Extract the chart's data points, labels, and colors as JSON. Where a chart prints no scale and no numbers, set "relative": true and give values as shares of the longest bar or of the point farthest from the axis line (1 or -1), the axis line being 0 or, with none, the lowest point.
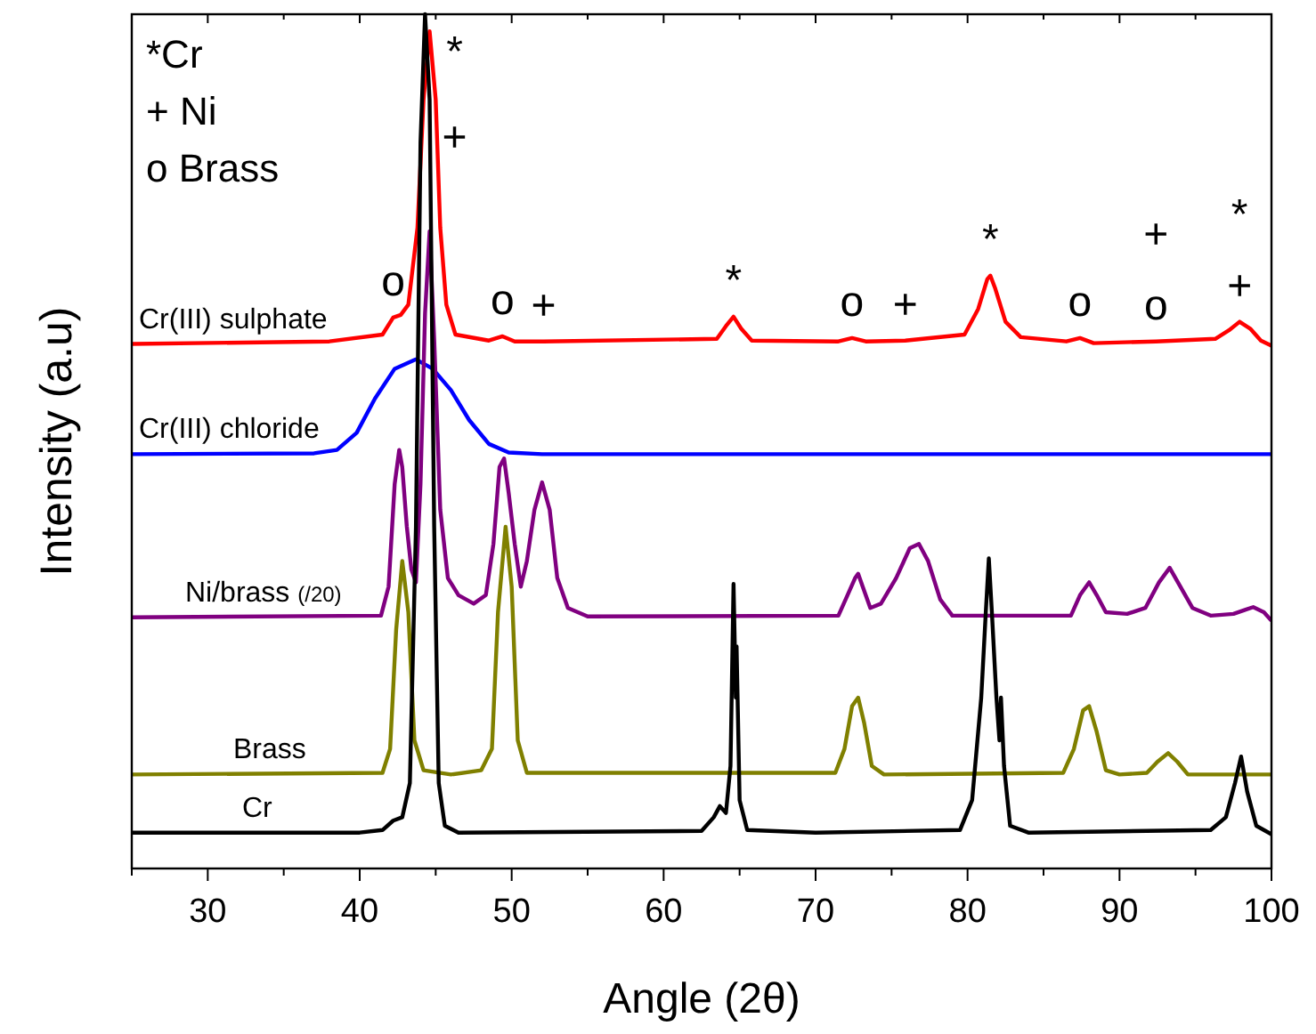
{
  "chart_data": {
    "type": "line",
    "relative": true,
    "xlabel": "Angle (2θ)",
    "ylabel": "Intensity (a.u)",
    "xlim": [
      25,
      100
    ],
    "xticks": [
      {
        "value": 25,
        "label": null
      },
      30,
      {
        "value": 35,
        "label": null
      },
      40,
      {
        "value": 45,
        "label": null
      },
      50,
      {
        "value": 55,
        "label": null
      },
      60,
      {
        "value": 65,
        "label": null
      },
      70,
      {
        "value": 75,
        "label": null
      },
      80,
      {
        "value": 85,
        "label": null
      },
      90,
      {
        "value": 95,
        "label": null
      },
      100
    ],
    "annotations": [
      "*Cr",
      "+ Ni",
      "o Brass",
      {
        "text": "o",
        "x": 42.2,
        "y": 0.645
      },
      {
        "text": "*",
        "x": 44.6,
        "y": 0.98
      },
      {
        "text": "+",
        "x": 44.6,
        "y": 0.98
      },
      {
        "text": "o",
        "x": 49.4,
        "y": 0.623
      },
      {
        "text": "+",
        "x": 52.1,
        "y": 0.617
      },
      {
        "text": "*",
        "x": 64.6,
        "y": 0.646
      },
      {
        "text": "o",
        "x": 72.4,
        "y": 0.621
      },
      {
        "text": "+",
        "x": 75.9,
        "y": 0.618
      },
      {
        "text": "*",
        "x": 81.5,
        "y": 0.694
      },
      {
        "text": "o",
        "x": 87.4,
        "y": 0.621
      },
      {
        "text": "o",
        "x": 92.4,
        "y": 0.617
      },
      {
        "text": "+",
        "x": 92.4,
        "y": 0.617
      },
      {
        "text": "+",
        "x": 97.9,
        "y": 0.64
      },
      {
        "text": "*",
        "x": 97.9,
        "y": 0.64
      }
    ],
    "series": [
      {
        "name": "Cr(III) sulphate",
        "color": "#ff0000",
        "x": [
          25,
          38,
          41.5,
          42.2,
          42.7,
          43.2,
          43.8,
          44.2,
          44.6,
          45.0,
          45.3,
          45.7,
          46.3,
          48.5,
          49.4,
          50.2,
          52.1,
          63.5,
          64.1,
          64.6,
          65.1,
          65.8,
          71.5,
          72.4,
          73.3,
          75.9,
          79.8,
          80.7,
          81.3,
          81.5,
          81.8,
          82.5,
          83.5,
          86.5,
          87.4,
          88.3,
          92.4,
          96.3,
          97.2,
          97.9,
          98.6,
          99.3,
          100
        ],
        "values": [
          0.614,
          0.617,
          0.625,
          0.645,
          0.648,
          0.66,
          0.75,
          0.9,
          0.98,
          0.9,
          0.75,
          0.66,
          0.625,
          0.618,
          0.623,
          0.617,
          0.617,
          0.62,
          0.635,
          0.646,
          0.632,
          0.618,
          0.617,
          0.621,
          0.617,
          0.618,
          0.625,
          0.655,
          0.69,
          0.694,
          0.68,
          0.64,
          0.622,
          0.617,
          0.621,
          0.615,
          0.617,
          0.62,
          0.63,
          0.64,
          0.632,
          0.618,
          0.612
        ]
      },
      {
        "name": "Cr(III) chloride",
        "color": "#0000ff",
        "x": [
          25,
          37,
          38.5,
          39.8,
          41,
          42.3,
          43.7,
          44.8,
          46,
          47.2,
          48.5,
          49.8,
          52,
          100
        ],
        "values": [
          0.485,
          0.486,
          0.49,
          0.51,
          0.55,
          0.585,
          0.596,
          0.585,
          0.56,
          0.525,
          0.497,
          0.487,
          0.485,
          0.485
        ]
      },
      {
        "name": "Ni/brass (/20)",
        "color": "#800080",
        "x": [
          25,
          41.4,
          41.9,
          42.3,
          42.6,
          42.8,
          43.1,
          43.4,
          43.7,
          44.0,
          44.3,
          44.6,
          44.9,
          45.3,
          45.8,
          46.5,
          47.5,
          48.3,
          48.8,
          49.2,
          49.5,
          49.8,
          50.2,
          50.6,
          51.0,
          51.5,
          52.0,
          52.5,
          53.0,
          53.7,
          55,
          71.5,
          72.1,
          72.6,
          72.8,
          73.1,
          73.6,
          74.3,
          75.3,
          76.2,
          76.8,
          77.4,
          78.2,
          79,
          86.8,
          87.4,
          88.0,
          88.5,
          89.1,
          90.5,
          91.7,
          92.6,
          93.3,
          94.0,
          94.8,
          96,
          97.5,
          98.3,
          98.8,
          99.5,
          100
        ],
        "values": [
          0.294,
          0.296,
          0.33,
          0.45,
          0.49,
          0.47,
          0.4,
          0.35,
          0.335,
          0.45,
          0.65,
          0.746,
          0.62,
          0.42,
          0.34,
          0.32,
          0.31,
          0.32,
          0.38,
          0.47,
          0.48,
          0.44,
          0.38,
          0.33,
          0.36,
          0.42,
          0.452,
          0.42,
          0.34,
          0.305,
          0.295,
          0.296,
          0.32,
          0.34,
          0.345,
          0.33,
          0.305,
          0.31,
          0.34,
          0.375,
          0.38,
          0.36,
          0.315,
          0.296,
          0.296,
          0.32,
          0.335,
          0.32,
          0.3,
          0.298,
          0.305,
          0.335,
          0.352,
          0.33,
          0.305,
          0.296,
          0.298,
          0.303,
          0.306,
          0.3,
          0.29
        ]
      },
      {
        "name": "Brass",
        "color": "#808000",
        "x": [
          25,
          41.5,
          42.0,
          42.4,
          42.8,
          43.2,
          43.6,
          44.2,
          46,
          48,
          48.7,
          49.1,
          49.6,
          50.0,
          50.4,
          51,
          71.3,
          71.9,
          72.4,
          72.8,
          73.2,
          73.7,
          74.5,
          86.3,
          87.0,
          87.6,
          88.0,
          88.5,
          89.1,
          90,
          91.8,
          92.5,
          93.2,
          93.8,
          94.5,
          100
        ],
        "values": [
          0.11,
          0.112,
          0.14,
          0.28,
          0.36,
          0.3,
          0.15,
          0.115,
          0.11,
          0.115,
          0.14,
          0.3,
          0.4,
          0.33,
          0.15,
          0.112,
          0.112,
          0.14,
          0.19,
          0.2,
          0.17,
          0.12,
          0.11,
          0.112,
          0.14,
          0.185,
          0.19,
          0.16,
          0.115,
          0.11,
          0.112,
          0.125,
          0.135,
          0.125,
          0.11,
          0.11
        ]
      },
      {
        "name": "Cr",
        "color": "#000000",
        "x": [
          25,
          40,
          41.5,
          42.2,
          42.8,
          43.3,
          43.7,
          44.0,
          44.3,
          44.6,
          44.9,
          45.2,
          45.6,
          46.5,
          62.5,
          63.3,
          63.7,
          64.1,
          64.4,
          64.6,
          64.75,
          64.8,
          65,
          65.5,
          70,
          79.5,
          80.3,
          80.9,
          81.2,
          81.4,
          81.6,
          81.9,
          82.1,
          82.2,
          82.4,
          82.8,
          84,
          96,
          97,
          97.6,
          98.0,
          98.4,
          99,
          100
        ],
        "values": [
          0.042,
          0.042,
          0.045,
          0.056,
          0.06,
          0.1,
          0.4,
          0.85,
          1,
          0.9,
          0.4,
          0.1,
          0.05,
          0.042,
          0.044,
          0.06,
          0.073,
          0.065,
          0.12,
          0.333,
          0.2,
          0.26,
          0.08,
          0.045,
          0.042,
          0.045,
          0.08,
          0.2,
          0.3,
          0.363,
          0.3,
          0.2,
          0.15,
          0.2,
          0.12,
          0.05,
          0.042,
          0.045,
          0.06,
          0.1,
          0.131,
          0.09,
          0.05,
          0.04
        ]
      }
    ]
  }
}
